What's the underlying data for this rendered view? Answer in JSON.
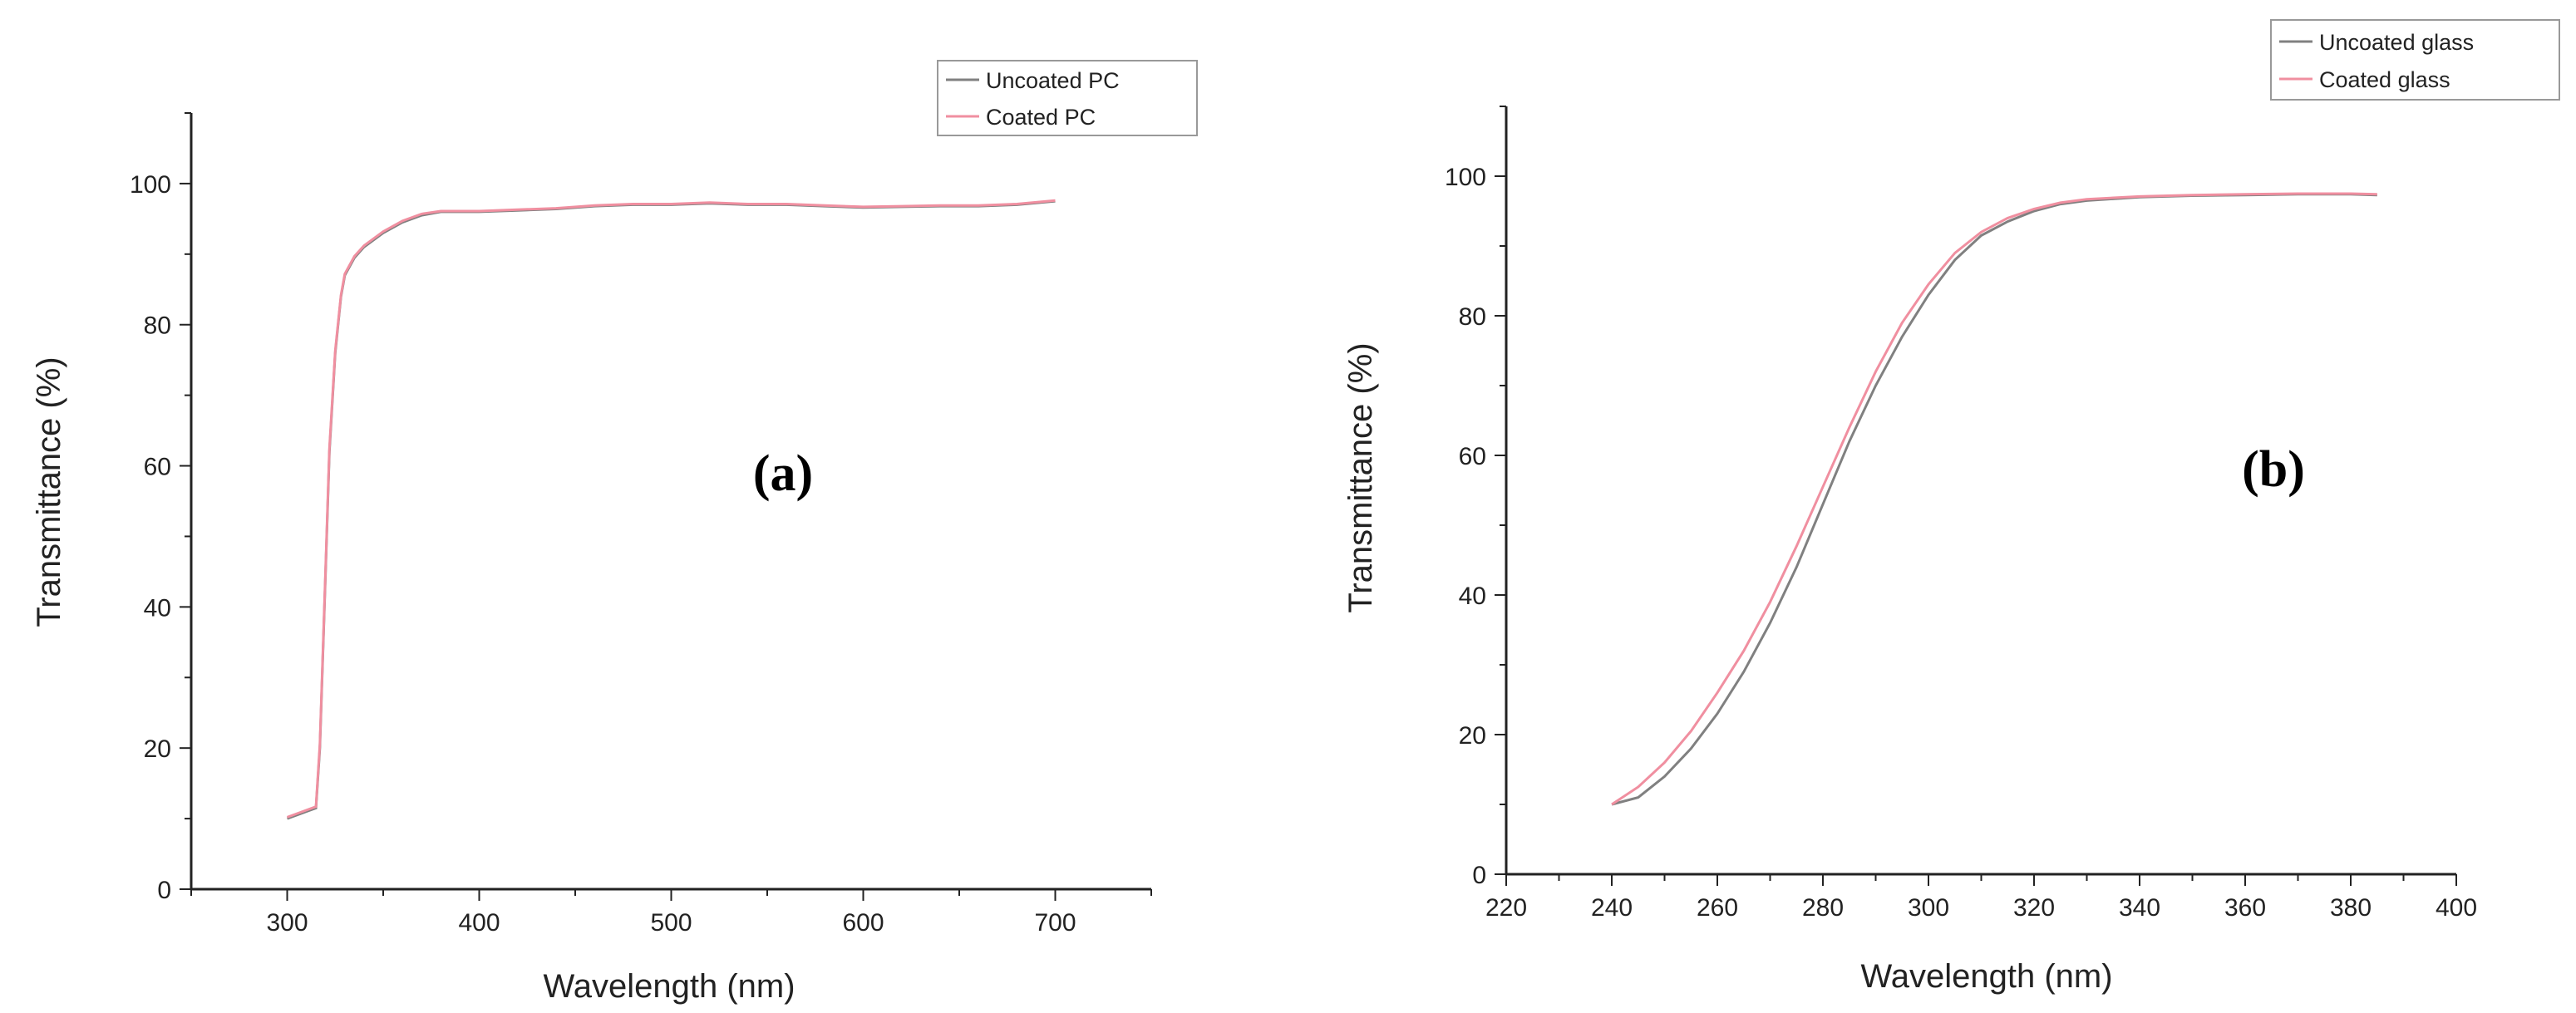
{
  "chart_data": [
    {
      "type": "line",
      "panel_label": "(a)",
      "xlabel": "Wavelength (nm)",
      "ylabel": "Transmittance (%)",
      "xlim": [
        250,
        750
      ],
      "ylim": [
        0,
        110
      ],
      "xticks": [
        300,
        400,
        500,
        600,
        700
      ],
      "yticks": [
        0,
        20,
        40,
        60,
        80,
        100
      ],
      "grid": false,
      "legend_position": "top-right",
      "series": [
        {
          "name": "Uncoated PC",
          "color": "#808080",
          "x": [
            300,
            305,
            310,
            315,
            317,
            320,
            322,
            325,
            328,
            330,
            335,
            340,
            350,
            360,
            370,
            380,
            390,
            400,
            420,
            440,
            460,
            480,
            500,
            520,
            540,
            560,
            580,
            600,
            620,
            640,
            660,
            680,
            700
          ],
          "y": [
            10,
            10.5,
            11,
            11.5,
            20,
            45,
            62,
            76,
            84,
            87,
            89.5,
            91,
            93,
            94.5,
            95.5,
            96,
            96,
            96,
            96.2,
            96.4,
            96.8,
            97,
            97,
            97.2,
            97,
            97,
            96.8,
            96.6,
            96.7,
            96.8,
            96.8,
            97,
            97.5
          ]
        },
        {
          "name": "Coated PC",
          "color": "#f08fa0",
          "x": [
            300,
            305,
            310,
            315,
            317,
            320,
            322,
            325,
            328,
            330,
            335,
            340,
            350,
            360,
            370,
            380,
            390,
            400,
            420,
            440,
            460,
            480,
            500,
            520,
            540,
            560,
            580,
            600,
            620,
            640,
            660,
            680,
            700
          ],
          "y": [
            10.2,
            10.7,
            11.2,
            11.7,
            20.5,
            45.5,
            62.5,
            76.3,
            84.2,
            87.2,
            89.7,
            91.2,
            93.2,
            94.7,
            95.7,
            96.1,
            96.1,
            96.1,
            96.3,
            96.5,
            96.9,
            97.1,
            97.1,
            97.3,
            97.1,
            97.1,
            96.9,
            96.7,
            96.8,
            96.9,
            96.9,
            97.1,
            97.6
          ]
        }
      ]
    },
    {
      "type": "line",
      "panel_label": "(b)",
      "xlabel": "Wavelength (nm)",
      "ylabel": "Transmittance (%)",
      "xlim": [
        220,
        400
      ],
      "ylim": [
        0,
        110
      ],
      "xticks": [
        220,
        240,
        260,
        280,
        300,
        320,
        340,
        360,
        380,
        400
      ],
      "yticks": [
        0,
        20,
        40,
        60,
        80,
        100
      ],
      "grid": false,
      "legend_position": "top-right",
      "series": [
        {
          "name": "Uncoated glass",
          "color": "#808080",
          "x": [
            240,
            245,
            250,
            255,
            260,
            265,
            270,
            275,
            280,
            285,
            290,
            295,
            300,
            305,
            310,
            315,
            320,
            325,
            330,
            340,
            350,
            360,
            370,
            380,
            385
          ],
          "y": [
            10,
            11,
            14,
            18,
            23,
            29,
            36,
            44,
            53,
            62,
            70,
            77,
            83,
            88,
            91.5,
            93.5,
            95,
            96,
            96.5,
            97,
            97.2,
            97.3,
            97.4,
            97.4,
            97.3
          ]
        },
        {
          "name": "Coated glass",
          "color": "#f08fa0",
          "x": [
            240,
            245,
            250,
            255,
            260,
            265,
            270,
            275,
            280,
            285,
            290,
            295,
            300,
            305,
            310,
            315,
            320,
            325,
            330,
            340,
            350,
            360,
            370,
            380,
            385
          ],
          "y": [
            10,
            12.5,
            16,
            20.5,
            26,
            32,
            39,
            47,
            55.5,
            64,
            72,
            79,
            84.5,
            89,
            92,
            94,
            95.3,
            96.2,
            96.7,
            97.1,
            97.3,
            97.4,
            97.5,
            97.5,
            97.4
          ]
        }
      ]
    }
  ]
}
